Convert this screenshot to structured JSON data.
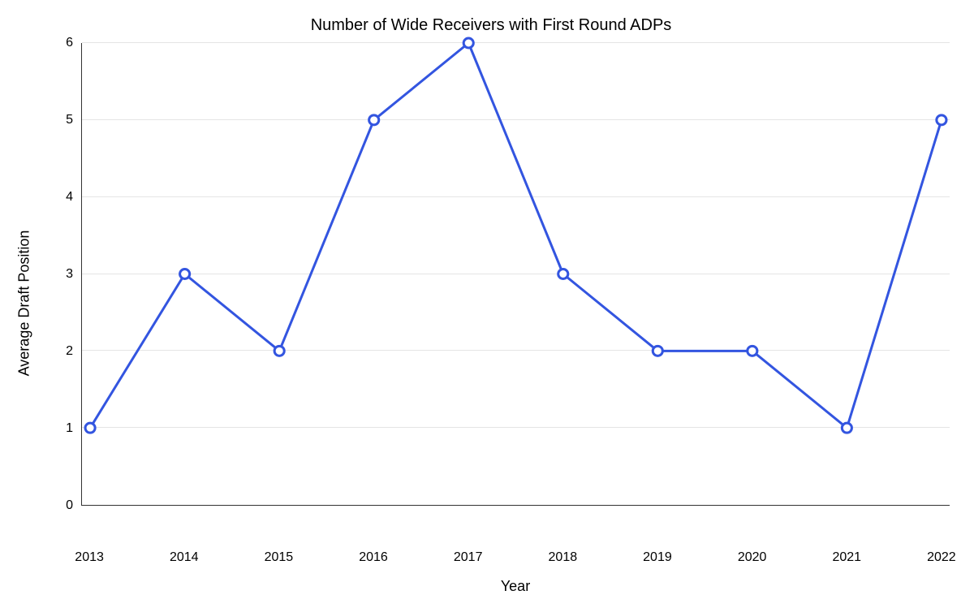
{
  "chart": {
    "type": "line",
    "title": "Number of Wide Receivers with First Round ADPs",
    "title_fontsize": 20,
    "xlabel": "Year",
    "ylabel": "Average Draft Position",
    "label_fontsize": 18,
    "tick_fontsize": 16,
    "categories": [
      "2013",
      "2014",
      "2015",
      "2016",
      "2017",
      "2018",
      "2019",
      "2020",
      "2021",
      "2022"
    ],
    "values": [
      1,
      3,
      2,
      5,
      6,
      3,
      2,
      2,
      1,
      5
    ],
    "line_color": "#3355e0",
    "line_width": 3,
    "marker_style": "circle",
    "marker_size": 6,
    "marker_fill": "#ffffff",
    "marker_stroke": "#3355e0",
    "marker_stroke_width": 3,
    "ylim": [
      0,
      6
    ],
    "ytick_step": 1,
    "yticks": [
      "0",
      "1",
      "2",
      "3",
      "4",
      "5",
      "6"
    ],
    "background_color": "#ffffff",
    "grid_color": "#e5e5e5",
    "grid": true,
    "axis_color": "#333333"
  }
}
